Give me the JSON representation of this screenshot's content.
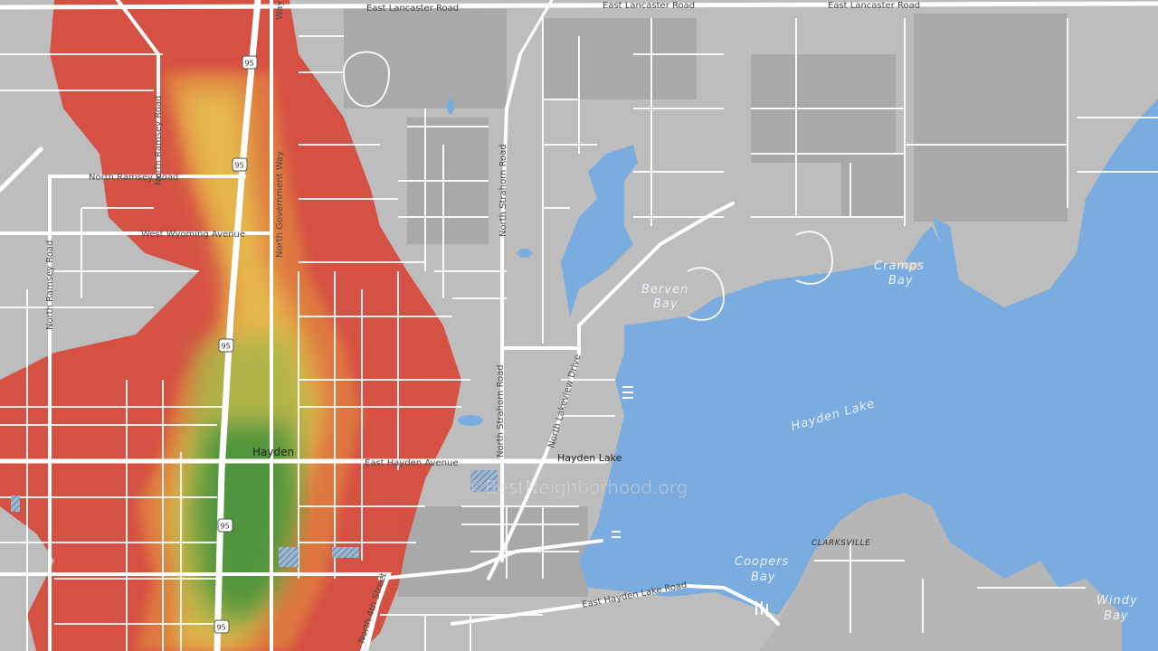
{
  "map": {
    "watermark": "©BestNeighborhood.org",
    "places": {
      "hayden": "Hayden",
      "hayden_lake_town": "Hayden Lake",
      "clarksville": "CLARKSVILLE"
    },
    "water": {
      "hayden_lake": "Hayden Lake",
      "berven_bay_1": "Berven",
      "berven_bay_2": "Bay",
      "cramps_bay_1": "Cramps",
      "cramps_bay_2": "Bay",
      "coopers_bay_1": "Coopers",
      "coopers_bay_2": "Bay",
      "windy_bay_1": "Windy",
      "windy_bay_2": "Bay"
    },
    "roads": {
      "east_lancaster_1": "East Lancaster Road",
      "east_lancaster_2": "East Lancaster Road",
      "east_lancaster_3": "East Lancaster Road",
      "north_ramsey_h": "North Ramsey Road",
      "north_ramsey_v": "North Ramsey Road",
      "north_ramsey_v2": "North Ramsey Road",
      "west_wyoming": "West Wyoming Avenue",
      "north_government": "North Government Way",
      "north_strahorn_1": "North Strahorn Road",
      "north_strahorn_2": "North Strahorn Road",
      "north_lakeview": "North Lakeview Drive",
      "east_hayden_ave": "East Hayden Avenue",
      "east_hayden_lake_rd": "East Hayden Lake Road",
      "n4th": "North 4th Street",
      "way": "Way"
    },
    "shields": [
      "95",
      "95",
      "95",
      "95",
      "95"
    ],
    "colors": {
      "land": "#bdbdbd",
      "water": "#7aace0",
      "roads": "#ffffff",
      "heat_low": "#d9493b",
      "heat_mid": "#e8b84b",
      "heat_high": "#3f8f3a"
    }
  }
}
